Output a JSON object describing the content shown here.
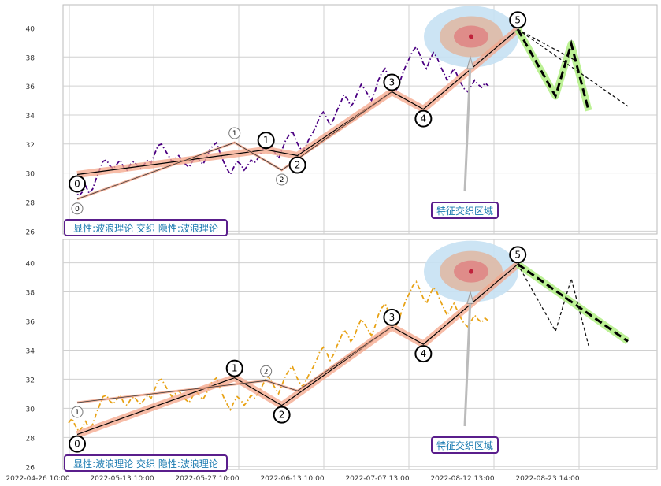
{
  "chart_data": [
    {
      "type": "line",
      "ylim": [
        25.8,
        41.6
      ],
      "yticks": [
        26,
        28,
        30,
        32,
        34,
        36,
        38,
        40
      ],
      "grid": true,
      "price_series": {
        "color": "#4b0082",
        "style": "dash-dot",
        "values": [
          29.0,
          29.3,
          28.8,
          28.4,
          28.7,
          29.1,
          28.6,
          28.9,
          29.6,
          30.2,
          30.8,
          30.9,
          30.5,
          30.3,
          30.6,
          30.9,
          30.4,
          30.2,
          30.6,
          30.8,
          30.5,
          30.3,
          30.6,
          30.9,
          30.7,
          31.3,
          31.9,
          32.0,
          31.6,
          31.2,
          30.8,
          31.0,
          31.2,
          30.9,
          30.6,
          30.4,
          30.8,
          31.2,
          30.9,
          30.6,
          31.0,
          31.6,
          31.9,
          32.1,
          31.4,
          30.8,
          30.3,
          29.9,
          30.4,
          30.8,
          30.6,
          30.2,
          30.5,
          30.9,
          30.7,
          31.0,
          31.4,
          31.9,
          32.2,
          31.8,
          31.4,
          31.0,
          31.6,
          32.2,
          32.6,
          32.9,
          32.3,
          31.8,
          31.5,
          31.9,
          32.4,
          32.8,
          33.3,
          33.9,
          34.2,
          33.8,
          33.3,
          33.7,
          34.3,
          34.8,
          35.4,
          35.1,
          34.6,
          34.9,
          35.6,
          36.1,
          35.8,
          35.4,
          35.0,
          35.6,
          36.4,
          36.9,
          37.2,
          36.6,
          36.0,
          35.6,
          36.1,
          36.8,
          37.4,
          37.9,
          38.4,
          38.7,
          38.2,
          37.6,
          37.2,
          37.8,
          38.3,
          38.0,
          37.4,
          36.9,
          36.4,
          36.8,
          37.2,
          36.7,
          36.2,
          35.8,
          35.6,
          36.0,
          36.4,
          36.1,
          35.9,
          36.2,
          36.0
        ]
      },
      "primary": {
        "labels": [
          "0",
          "1",
          "2",
          "3",
          "4",
          "5"
        ],
        "waves": [
          [
            [
              0,
              29.9
            ],
            [
              12,
              31.6
            ],
            [
              14,
              31.2
            ],
            [
              20,
              35.6
            ],
            [
              22,
              34.4
            ],
            [
              28,
              39.9
            ]
          ]
        ]
      },
      "secondary": {
        "labels": [
          "0",
          "1",
          "2"
        ],
        "waves": [
          [
            [
              0,
              28.2
            ],
            [
              10,
              32.1
            ],
            [
              13,
              30.2
            ],
            [
              20,
              35.6
            ]
          ]
        ]
      },
      "forecast": {
        "green_path": [
          [
            28,
            39.9
          ],
          [
            30.4,
            35.3
          ],
          [
            31.4,
            38.9
          ],
          [
            32.5,
            34.3
          ]
        ],
        "dashed_lines": [
          [
            [
              28,
              39.9
            ],
            [
              35,
              34.6
            ]
          ],
          [
            [
              28,
              39.9
            ],
            [
              31.6,
              37.8
            ]
          ]
        ]
      },
      "feature_zone_label": "特征交织区域",
      "legend": "显性:波浪理论 交织 隐性:波浪理论"
    },
    {
      "type": "line",
      "ylim": [
        25.8,
        41.6
      ],
      "yticks": [
        26,
        28,
        30,
        32,
        34,
        36,
        38,
        40
      ],
      "xticks": [
        "2022-04-26 10:00",
        "2022-05-13 10:00",
        "2022-05-27 10:00",
        "2022-06-13 10:00",
        "2022-07-07 13:00",
        "2022-08-12 13:00",
        "2022-08-23 14:00"
      ],
      "grid": true,
      "price_series": {
        "color": "#e8a317",
        "style": "dash-dot",
        "values": [
          29.0,
          29.3,
          28.8,
          28.4,
          28.7,
          29.1,
          28.6,
          28.9,
          29.6,
          30.2,
          30.8,
          30.9,
          30.5,
          30.3,
          30.6,
          30.9,
          30.4,
          30.2,
          30.6,
          30.8,
          30.5,
          30.3,
          30.6,
          30.9,
          30.7,
          31.3,
          31.9,
          32.0,
          31.6,
          31.2,
          30.8,
          31.0,
          31.2,
          30.9,
          30.6,
          30.4,
          30.8,
          31.2,
          30.9,
          30.6,
          31.0,
          31.6,
          31.9,
          32.1,
          31.4,
          30.8,
          30.3,
          29.9,
          30.4,
          30.8,
          30.6,
          30.2,
          30.5,
          30.9,
          30.7,
          31.0,
          31.4,
          31.9,
          32.2,
          31.8,
          31.4,
          31.0,
          31.6,
          32.2,
          32.6,
          32.9,
          32.3,
          31.8,
          31.5,
          31.9,
          32.4,
          32.8,
          33.3,
          33.9,
          34.2,
          33.8,
          33.3,
          33.7,
          34.3,
          34.8,
          35.4,
          35.1,
          34.6,
          34.9,
          35.6,
          36.1,
          35.8,
          35.4,
          35.0,
          35.6,
          36.4,
          36.9,
          37.2,
          36.6,
          36.0,
          35.6,
          36.1,
          36.8,
          37.4,
          37.9,
          38.4,
          38.7,
          38.2,
          37.6,
          37.2,
          37.8,
          38.3,
          38.0,
          37.4,
          36.9,
          36.4,
          36.8,
          37.2,
          36.7,
          36.2,
          35.8,
          35.6,
          36.0,
          36.4,
          36.1,
          35.9,
          36.2,
          36.0
        ]
      },
      "primary": {
        "labels": [
          "0",
          "1",
          "2",
          "3",
          "4",
          "5"
        ],
        "waves": [
          [
            [
              0,
              28.2
            ],
            [
              10,
              32.1
            ],
            [
              13,
              30.2
            ],
            [
              20,
              35.6
            ],
            [
              22,
              34.4
            ],
            [
              28,
              39.9
            ]
          ]
        ]
      },
      "secondary": {
        "labels": [
          "1",
          "2"
        ],
        "waves": [
          [
            [
              0,
              30.4
            ],
            [
              12,
              31.9
            ],
            [
              14,
              31.2
            ],
            [
              20,
              35.6
            ]
          ]
        ]
      },
      "forecast": {
        "green_path": [
          [
            28,
            39.9
          ],
          [
            35,
            34.6
          ]
        ],
        "dashed_lines": [
          [
            [
              28,
              39.9
            ],
            [
              30.4,
              35.3
            ],
            [
              31.4,
              38.9
            ],
            [
              32.5,
              34.3
            ]
          ]
        ]
      },
      "feature_zone_label": "特征交织区域",
      "legend": "显性:波浪理论 交织 隐性:波浪理论"
    }
  ],
  "colors": {
    "grid": "#d0d0d0",
    "wave_band": "#f4a58a",
    "forecast_green": "#b5f08a",
    "zone_outer": "#c6e1f3",
    "zone_mid": "#dfb9a6",
    "zone_inner": "#e08080",
    "label_border": "#5a1e8c",
    "label_text": "#1a7ab0"
  }
}
